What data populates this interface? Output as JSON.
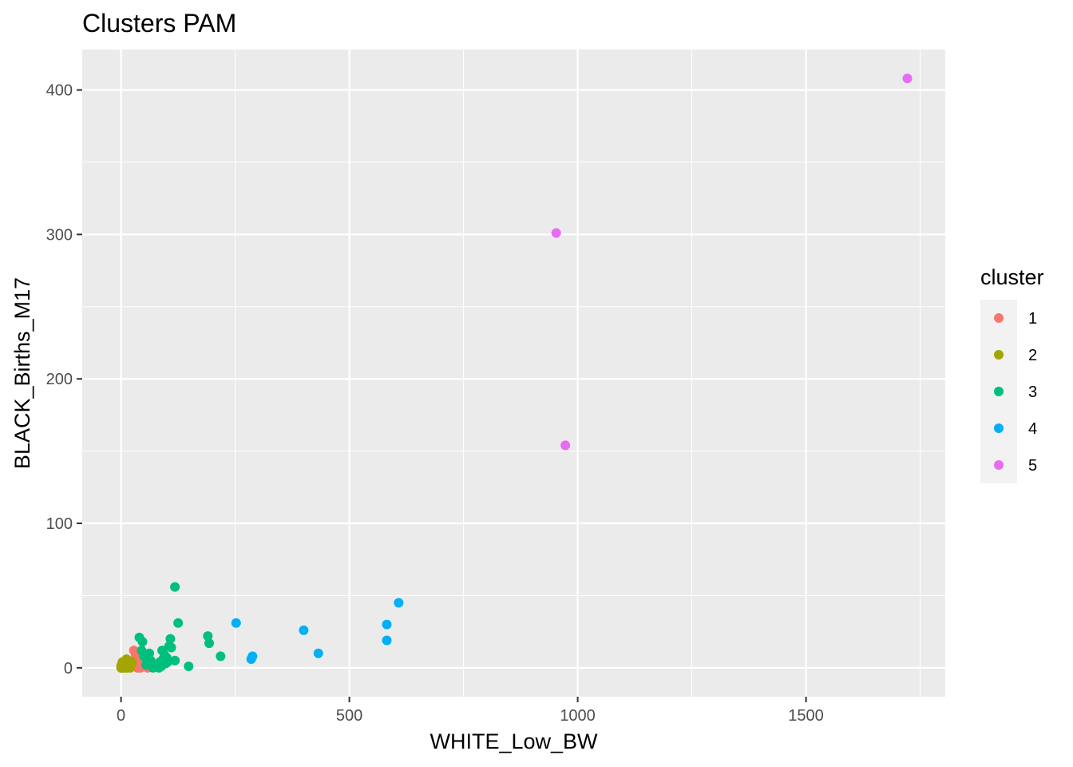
{
  "chart_data": {
    "type": "scatter",
    "title": "Clusters PAM",
    "xlabel": "WHITE_Low_BW",
    "ylabel": "BLACK_Births_M17",
    "xlim": [
      -85,
      1805
    ],
    "ylim": [
      -20,
      428
    ],
    "x_ticks": [
      0,
      500,
      1000,
      1500
    ],
    "y_ticks": [
      0,
      100,
      200,
      300,
      400
    ],
    "grid": true,
    "legend": {
      "title": "cluster",
      "placement": "right"
    },
    "series": [
      {
        "name": "1",
        "color": "#F8766D",
        "points": [
          [
            28,
            12
          ],
          [
            32,
            9
          ],
          [
            30,
            6
          ],
          [
            35,
            4
          ],
          [
            40,
            2
          ],
          [
            45,
            1
          ],
          [
            50,
            3
          ],
          [
            55,
            5
          ],
          [
            60,
            2
          ],
          [
            65,
            1
          ],
          [
            30,
            2
          ],
          [
            25,
            1
          ],
          [
            38,
            8
          ],
          [
            42,
            0
          ],
          [
            48,
            1
          ],
          [
            52,
            4
          ],
          [
            58,
            0
          ],
          [
            62,
            3
          ],
          [
            68,
            2
          ],
          [
            35,
            10
          ],
          [
            27,
            3
          ],
          [
            44,
            6
          ],
          [
            36,
            0
          ],
          [
            56,
            1
          ]
        ]
      },
      {
        "name": "2",
        "color": "#A3A500",
        "points": [
          [
            0,
            0
          ],
          [
            0,
            1
          ],
          [
            1,
            2
          ],
          [
            2,
            0
          ],
          [
            3,
            1
          ],
          [
            4,
            3
          ],
          [
            5,
            0
          ],
          [
            6,
            2
          ],
          [
            7,
            1
          ],
          [
            8,
            4
          ],
          [
            10,
            0
          ],
          [
            12,
            6
          ],
          [
            14,
            2
          ],
          [
            15,
            5
          ],
          [
            16,
            1
          ],
          [
            18,
            3
          ],
          [
            20,
            0
          ],
          [
            22,
            2
          ],
          [
            24,
            4
          ],
          [
            1,
            0
          ],
          [
            9,
            2
          ],
          [
            11,
            1
          ],
          [
            13,
            0
          ],
          [
            17,
            4
          ],
          [
            19,
            1
          ],
          [
            3,
            4
          ]
        ]
      },
      {
        "name": "3",
        "color": "#00BF7D",
        "points": [
          [
            118,
            56
          ],
          [
            125,
            31
          ],
          [
            40,
            21
          ],
          [
            47,
            18
          ],
          [
            108,
            20
          ],
          [
            105,
            15
          ],
          [
            110,
            14
          ],
          [
            62,
            10
          ],
          [
            90,
            12
          ],
          [
            95,
            9
          ],
          [
            190,
            22
          ],
          [
            193,
            17
          ],
          [
            218,
            8
          ],
          [
            148,
            1
          ],
          [
            118,
            5
          ],
          [
            80,
            2
          ],
          [
            85,
            4
          ],
          [
            92,
            6
          ],
          [
            98,
            3
          ],
          [
            102,
            4
          ],
          [
            75,
            1
          ],
          [
            70,
            0
          ],
          [
            65,
            5
          ],
          [
            55,
            2
          ],
          [
            50,
            8
          ],
          [
            45,
            12
          ],
          [
            88,
            1
          ],
          [
            83,
            0
          ],
          [
            100,
            7
          ]
        ]
      },
      {
        "name": "4",
        "color": "#00B0F6",
        "points": [
          [
            608,
            45
          ],
          [
            582,
            30
          ],
          [
            582,
            19
          ],
          [
            252,
            31
          ],
          [
            400,
            26
          ],
          [
            432,
            10
          ],
          [
            288,
            8
          ],
          [
            285,
            6
          ]
        ]
      },
      {
        "name": "5",
        "color": "#E76BF3",
        "points": [
          [
            1722,
            408
          ],
          [
            953,
            301
          ],
          [
            973,
            154
          ]
        ]
      }
    ]
  }
}
